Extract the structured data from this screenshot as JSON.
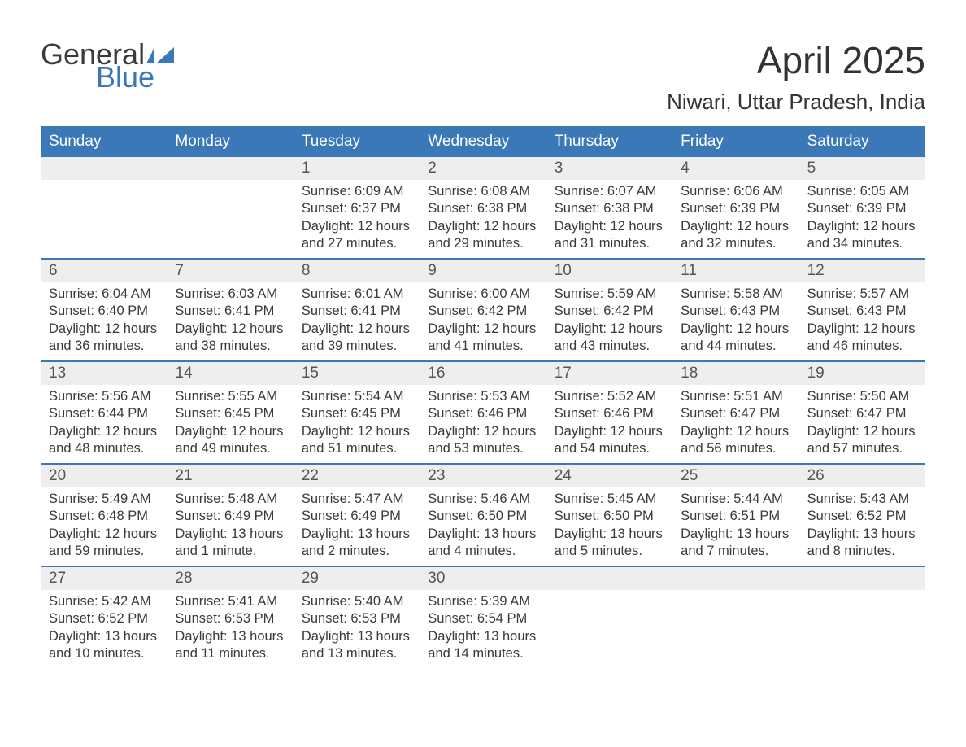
{
  "brand": {
    "word1": "General",
    "word2": "Blue"
  },
  "title": "April 2025",
  "subtitle": "Niwari, Uttar Pradesh, India",
  "colors": {
    "header_bg": "#3b78b8",
    "header_text": "#ffffff",
    "daynum_bg": "#eeeeee",
    "body_text": "#3a3a3a",
    "rule": "#3b78b8",
    "page_bg": "#ffffff",
    "brand_gray": "#3a3a3a",
    "brand_blue": "#3b78b8"
  },
  "days_of_week": [
    "Sunday",
    "Monday",
    "Tuesday",
    "Wednesday",
    "Thursday",
    "Friday",
    "Saturday"
  ],
  "weeks": [
    [
      {
        "n": "",
        "sunrise": "",
        "sunset": "",
        "daylight": ""
      },
      {
        "n": "",
        "sunrise": "",
        "sunset": "",
        "daylight": ""
      },
      {
        "n": "1",
        "sunrise": "Sunrise: 6:09 AM",
        "sunset": "Sunset: 6:37 PM",
        "daylight": "Daylight: 12 hours and 27 minutes."
      },
      {
        "n": "2",
        "sunrise": "Sunrise: 6:08 AM",
        "sunset": "Sunset: 6:38 PM",
        "daylight": "Daylight: 12 hours and 29 minutes."
      },
      {
        "n": "3",
        "sunrise": "Sunrise: 6:07 AM",
        "sunset": "Sunset: 6:38 PM",
        "daylight": "Daylight: 12 hours and 31 minutes."
      },
      {
        "n": "4",
        "sunrise": "Sunrise: 6:06 AM",
        "sunset": "Sunset: 6:39 PM",
        "daylight": "Daylight: 12 hours and 32 minutes."
      },
      {
        "n": "5",
        "sunrise": "Sunrise: 6:05 AM",
        "sunset": "Sunset: 6:39 PM",
        "daylight": "Daylight: 12 hours and 34 minutes."
      }
    ],
    [
      {
        "n": "6",
        "sunrise": "Sunrise: 6:04 AM",
        "sunset": "Sunset: 6:40 PM",
        "daylight": "Daylight: 12 hours and 36 minutes."
      },
      {
        "n": "7",
        "sunrise": "Sunrise: 6:03 AM",
        "sunset": "Sunset: 6:41 PM",
        "daylight": "Daylight: 12 hours and 38 minutes."
      },
      {
        "n": "8",
        "sunrise": "Sunrise: 6:01 AM",
        "sunset": "Sunset: 6:41 PM",
        "daylight": "Daylight: 12 hours and 39 minutes."
      },
      {
        "n": "9",
        "sunrise": "Sunrise: 6:00 AM",
        "sunset": "Sunset: 6:42 PM",
        "daylight": "Daylight: 12 hours and 41 minutes."
      },
      {
        "n": "10",
        "sunrise": "Sunrise: 5:59 AM",
        "sunset": "Sunset: 6:42 PM",
        "daylight": "Daylight: 12 hours and 43 minutes."
      },
      {
        "n": "11",
        "sunrise": "Sunrise: 5:58 AM",
        "sunset": "Sunset: 6:43 PM",
        "daylight": "Daylight: 12 hours and 44 minutes."
      },
      {
        "n": "12",
        "sunrise": "Sunrise: 5:57 AM",
        "sunset": "Sunset: 6:43 PM",
        "daylight": "Daylight: 12 hours and 46 minutes."
      }
    ],
    [
      {
        "n": "13",
        "sunrise": "Sunrise: 5:56 AM",
        "sunset": "Sunset: 6:44 PM",
        "daylight": "Daylight: 12 hours and 48 minutes."
      },
      {
        "n": "14",
        "sunrise": "Sunrise: 5:55 AM",
        "sunset": "Sunset: 6:45 PM",
        "daylight": "Daylight: 12 hours and 49 minutes."
      },
      {
        "n": "15",
        "sunrise": "Sunrise: 5:54 AM",
        "sunset": "Sunset: 6:45 PM",
        "daylight": "Daylight: 12 hours and 51 minutes."
      },
      {
        "n": "16",
        "sunrise": "Sunrise: 5:53 AM",
        "sunset": "Sunset: 6:46 PM",
        "daylight": "Daylight: 12 hours and 53 minutes."
      },
      {
        "n": "17",
        "sunrise": "Sunrise: 5:52 AM",
        "sunset": "Sunset: 6:46 PM",
        "daylight": "Daylight: 12 hours and 54 minutes."
      },
      {
        "n": "18",
        "sunrise": "Sunrise: 5:51 AM",
        "sunset": "Sunset: 6:47 PM",
        "daylight": "Daylight: 12 hours and 56 minutes."
      },
      {
        "n": "19",
        "sunrise": "Sunrise: 5:50 AM",
        "sunset": "Sunset: 6:47 PM",
        "daylight": "Daylight: 12 hours and 57 minutes."
      }
    ],
    [
      {
        "n": "20",
        "sunrise": "Sunrise: 5:49 AM",
        "sunset": "Sunset: 6:48 PM",
        "daylight": "Daylight: 12 hours and 59 minutes."
      },
      {
        "n": "21",
        "sunrise": "Sunrise: 5:48 AM",
        "sunset": "Sunset: 6:49 PM",
        "daylight": "Daylight: 13 hours and 1 minute."
      },
      {
        "n": "22",
        "sunrise": "Sunrise: 5:47 AM",
        "sunset": "Sunset: 6:49 PM",
        "daylight": "Daylight: 13 hours and 2 minutes."
      },
      {
        "n": "23",
        "sunrise": "Sunrise: 5:46 AM",
        "sunset": "Sunset: 6:50 PM",
        "daylight": "Daylight: 13 hours and 4 minutes."
      },
      {
        "n": "24",
        "sunrise": "Sunrise: 5:45 AM",
        "sunset": "Sunset: 6:50 PM",
        "daylight": "Daylight: 13 hours and 5 minutes."
      },
      {
        "n": "25",
        "sunrise": "Sunrise: 5:44 AM",
        "sunset": "Sunset: 6:51 PM",
        "daylight": "Daylight: 13 hours and 7 minutes."
      },
      {
        "n": "26",
        "sunrise": "Sunrise: 5:43 AM",
        "sunset": "Sunset: 6:52 PM",
        "daylight": "Daylight: 13 hours and 8 minutes."
      }
    ],
    [
      {
        "n": "27",
        "sunrise": "Sunrise: 5:42 AM",
        "sunset": "Sunset: 6:52 PM",
        "daylight": "Daylight: 13 hours and 10 minutes."
      },
      {
        "n": "28",
        "sunrise": "Sunrise: 5:41 AM",
        "sunset": "Sunset: 6:53 PM",
        "daylight": "Daylight: 13 hours and 11 minutes."
      },
      {
        "n": "29",
        "sunrise": "Sunrise: 5:40 AM",
        "sunset": "Sunset: 6:53 PM",
        "daylight": "Daylight: 13 hours and 13 minutes."
      },
      {
        "n": "30",
        "sunrise": "Sunrise: 5:39 AM",
        "sunset": "Sunset: 6:54 PM",
        "daylight": "Daylight: 13 hours and 14 minutes."
      },
      {
        "n": "",
        "sunrise": "",
        "sunset": "",
        "daylight": ""
      },
      {
        "n": "",
        "sunrise": "",
        "sunset": "",
        "daylight": ""
      },
      {
        "n": "",
        "sunrise": "",
        "sunset": "",
        "daylight": ""
      }
    ]
  ]
}
